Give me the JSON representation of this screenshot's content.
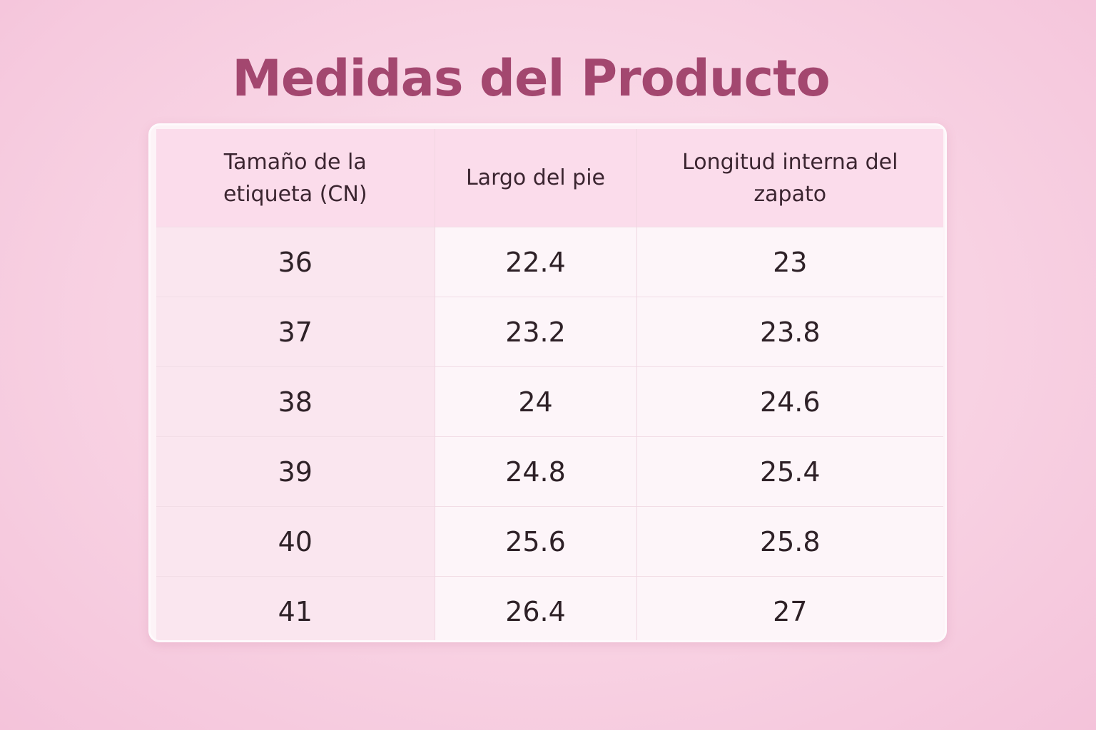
{
  "title": "Medidas del Producto",
  "table": {
    "headers": [
      "Tamaño de la etiqueta (CN)",
      "Largo del pie",
      "Longitud interna del zapato"
    ],
    "rows": [
      [
        "36",
        "22.4",
        "23"
      ],
      [
        "37",
        "23.2",
        "23.8"
      ],
      [
        "38",
        "24",
        "24.6"
      ],
      [
        "39",
        "24.8",
        "25.4"
      ],
      [
        "40",
        "25.6",
        "25.8"
      ],
      [
        "41",
        "26.4",
        "27"
      ]
    ]
  },
  "colors": {
    "title": "#a3476f",
    "header_bg": "#fbdceb",
    "background": "#f8d2e3"
  }
}
